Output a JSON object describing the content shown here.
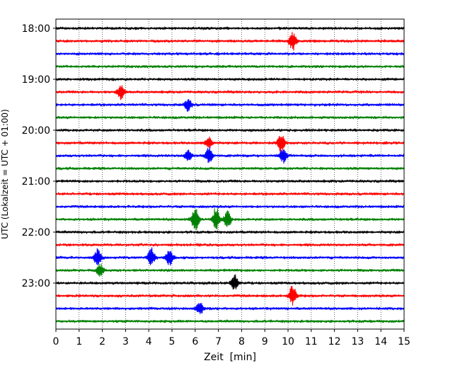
{
  "chart_data": {
    "type": "line",
    "subtype": "helicorder",
    "xlabel": "Zeit  [min]",
    "ylabel": "UTC (Lokalzeit = UTC + 01:00)",
    "xlim": [
      0,
      15
    ],
    "x_ticks": [
      0,
      1,
      2,
      3,
      4,
      5,
      6,
      7,
      8,
      9,
      10,
      11,
      12,
      13,
      14,
      15
    ],
    "y_tick_labels": [
      "18:00",
      "19:00",
      "20:00",
      "21:00",
      "22:00",
      "23:00"
    ],
    "y_tick_label_trace_index": [
      0,
      4,
      8,
      12,
      16,
      20
    ],
    "row_interval_min": 15,
    "vertical_grid": "dotted",
    "trace_colors": [
      "#000000",
      "#ff0000",
      "#0000ff",
      "#008000"
    ],
    "traces": [
      {
        "start": "18:00",
        "color": "#000000",
        "events": []
      },
      {
        "start": "18:15",
        "color": "#ff0000",
        "events": [
          {
            "x": 10.2,
            "amp": 1.5
          }
        ]
      },
      {
        "start": "18:30",
        "color": "#0000ff",
        "events": []
      },
      {
        "start": "18:45",
        "color": "#008000",
        "events": []
      },
      {
        "start": "19:00",
        "color": "#000000",
        "events": []
      },
      {
        "start": "19:15",
        "color": "#ff0000",
        "events": [
          {
            "x": 2.8,
            "amp": 1.2
          }
        ]
      },
      {
        "start": "19:30",
        "color": "#0000ff",
        "events": [
          {
            "x": 5.7,
            "amp": 1.0
          }
        ]
      },
      {
        "start": "19:45",
        "color": "#008000",
        "events": []
      },
      {
        "start": "20:00",
        "color": "#000000",
        "events": []
      },
      {
        "start": "20:15",
        "color": "#ff0000",
        "events": [
          {
            "x": 6.6,
            "amp": 1.0
          },
          {
            "x": 9.7,
            "amp": 1.6
          }
        ]
      },
      {
        "start": "20:30",
        "color": "#0000ff",
        "events": [
          {
            "x": 5.7,
            "amp": 1.0
          },
          {
            "x": 6.6,
            "amp": 1.4
          },
          {
            "x": 9.8,
            "amp": 1.2
          }
        ]
      },
      {
        "start": "20:45",
        "color": "#008000",
        "events": []
      },
      {
        "start": "21:00",
        "color": "#000000",
        "events": []
      },
      {
        "start": "21:15",
        "color": "#ff0000",
        "events": []
      },
      {
        "start": "21:30",
        "color": "#0000ff",
        "events": []
      },
      {
        "start": "21:45",
        "color": "#008000",
        "events": [
          {
            "x": 6.0,
            "amp": 2.2
          },
          {
            "x": 6.9,
            "amp": 2.0
          },
          {
            "x": 7.4,
            "amp": 1.4
          }
        ]
      },
      {
        "start": "22:00",
        "color": "#000000",
        "events": []
      },
      {
        "start": "22:15",
        "color": "#ff0000",
        "events": []
      },
      {
        "start": "22:30",
        "color": "#0000ff",
        "events": [
          {
            "x": 1.8,
            "amp": 1.5
          },
          {
            "x": 4.1,
            "amp": 1.6
          },
          {
            "x": 4.9,
            "amp": 1.4
          }
        ]
      },
      {
        "start": "22:45",
        "color": "#008000",
        "events": [
          {
            "x": 1.9,
            "amp": 1.0
          }
        ]
      },
      {
        "start": "23:00",
        "color": "#000000",
        "events": [
          {
            "x": 7.7,
            "amp": 1.5
          }
        ]
      },
      {
        "start": "23:15",
        "color": "#ff0000",
        "events": [
          {
            "x": 10.2,
            "amp": 1.8
          }
        ]
      },
      {
        "start": "23:30",
        "color": "#0000ff",
        "events": [
          {
            "x": 6.2,
            "amp": 1.0
          }
        ]
      },
      {
        "start": "23:45",
        "color": "#008000",
        "events": []
      }
    ]
  }
}
